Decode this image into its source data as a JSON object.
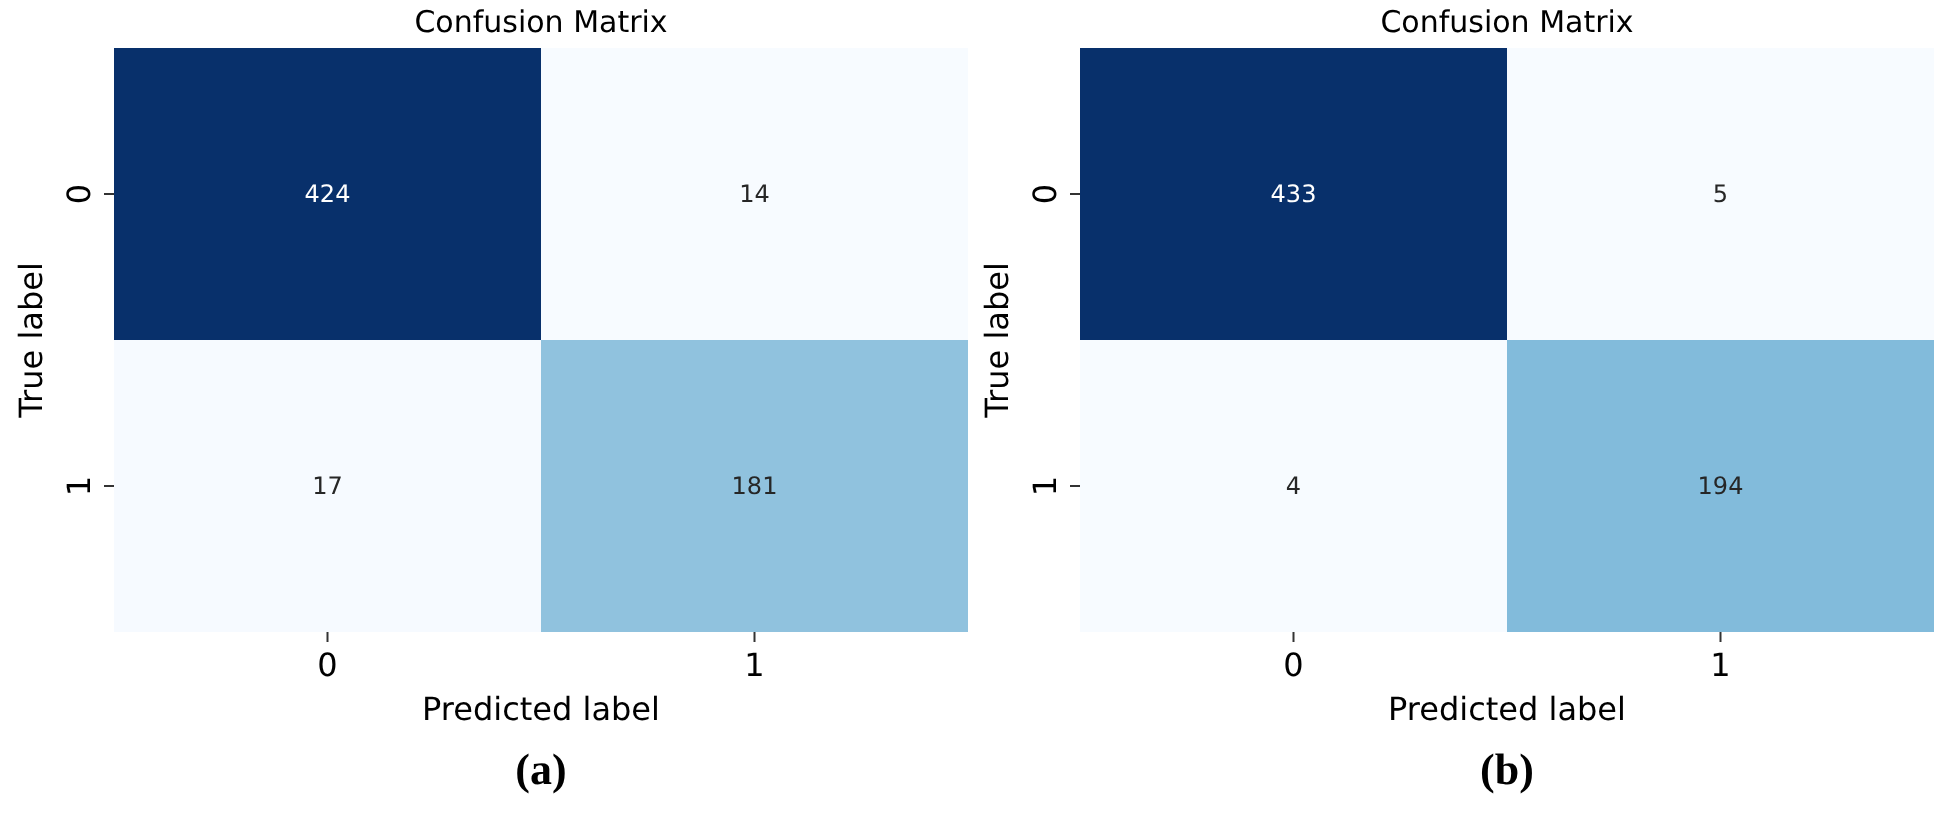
{
  "chart_data": [
    {
      "type": "heatmap",
      "title": "Confusion Matrix",
      "xlabel": "Predicted label",
      "ylabel": "True label",
      "categories": [
        "0",
        "1"
      ],
      "y_categories": [
        "0",
        "1"
      ],
      "cells": [
        [
          424,
          14
        ],
        [
          17,
          181
        ]
      ],
      "data_labels": true,
      "annotations": [
        "(a)"
      ]
    },
    {
      "type": "heatmap",
      "title": "Confusion Matrix",
      "xlabel": "Predicted label",
      "ylabel": "True label",
      "categories": [
        "0",
        "1"
      ],
      "y_categories": [
        "0",
        "1"
      ],
      "cells": [
        [
          433,
          5
        ],
        [
          4,
          194
        ]
      ],
      "data_labels": true,
      "annotations": [
        "(b)"
      ]
    }
  ]
}
